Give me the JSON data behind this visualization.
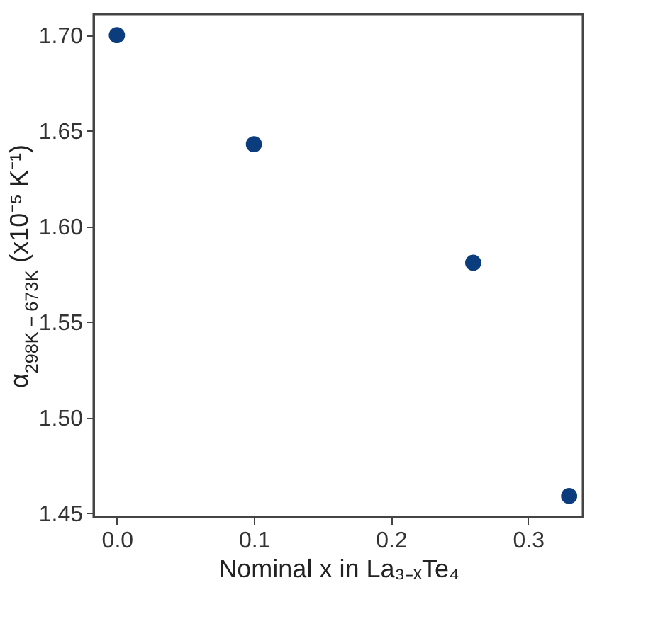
{
  "chart_data": {
    "type": "scatter",
    "xlabel": "Nominal x in La₃₋ₓTe₄",
    "ylabel": "α$_{298K − 673K}$ (x10⁻⁵ K⁻¹)",
    "x": [
      0,
      0.1,
      0.26,
      0.33
    ],
    "series": [
      {
        "color": "#0b3c7d",
        "values": [
          1.7,
          1.643,
          1.581,
          1.459
        ]
      }
    ],
    "xlim": [
      -0.017,
      0.34
    ],
    "ylim": [
      1.448,
      1.711
    ],
    "xticks": [
      {
        "value": 0,
        "label": "0.0"
      },
      {
        "value": 0.1,
        "label": "0.1"
      },
      {
        "value": 0.2,
        "label": "0.2"
      },
      {
        "value": 0.3,
        "label": "0.3"
      }
    ],
    "yticks": [
      {
        "value": 1.45,
        "label": "1.45"
      },
      {
        "value": 1.5,
        "label": "1.50"
      },
      {
        "value": 1.55,
        "label": "1.55"
      },
      {
        "value": 1.6,
        "label": "1.60"
      },
      {
        "value": 1.65,
        "label": "1.65"
      },
      {
        "value": 1.7,
        "label": "1.70"
      }
    ],
    "grid": false,
    "marker": "circle"
  }
}
